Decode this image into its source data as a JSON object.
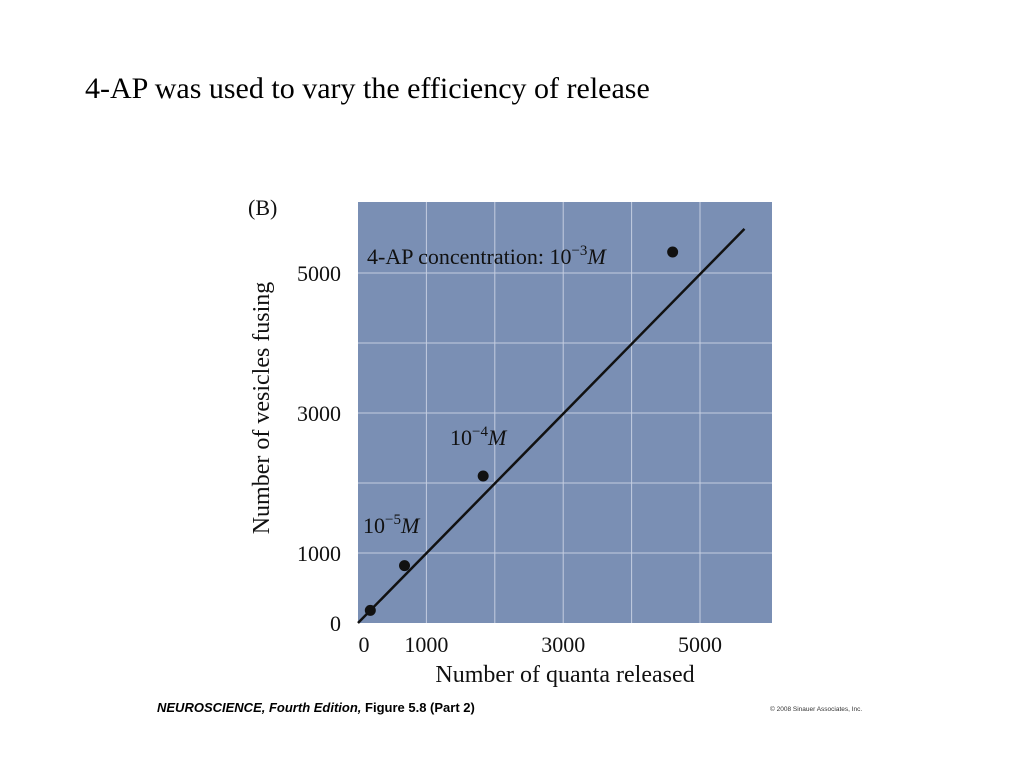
{
  "slide": {
    "title": "4-AP was used to vary the efficiency of release"
  },
  "chart_data": {
    "type": "scatter",
    "panel_label": "(B)",
    "xlabel": "Number of quanta released",
    "ylabel": "Number of vesicles fusing",
    "xlim": [
      0,
      6000
    ],
    "ylim": [
      0,
      5700
    ],
    "x_ticks": [
      0,
      1000,
      3000,
      5000
    ],
    "y_ticks": [
      0,
      1000,
      3000,
      5000
    ],
    "grid": true,
    "background_color": "#7a8fb4",
    "grid_color": "#c4cde0",
    "series": [
      {
        "points": [
          {
            "x": 180,
            "y": 180
          },
          {
            "x": 680,
            "y": 820
          },
          {
            "x": 1830,
            "y": 2100
          },
          {
            "x": 4600,
            "y": 5300
          }
        ]
      }
    ],
    "fit_line": {
      "x0": 0,
      "y0": 0,
      "x1": 5650,
      "y1": 5630
    },
    "annotations": [
      {
        "prefix": "4-AP concentration: 10",
        "exponent": "−3",
        "unit": "M"
      },
      {
        "prefix": "10",
        "exponent": "−4",
        "unit": "M"
      },
      {
        "prefix": "10",
        "exponent": "−5",
        "unit": "M"
      }
    ]
  },
  "caption": {
    "book": "NEUROSCIENCE,",
    "edition": "Fourth Edition,",
    "figure": "Figure 5.8 (Part 2)",
    "copyright": "© 2008 Sinauer Associates, Inc."
  }
}
